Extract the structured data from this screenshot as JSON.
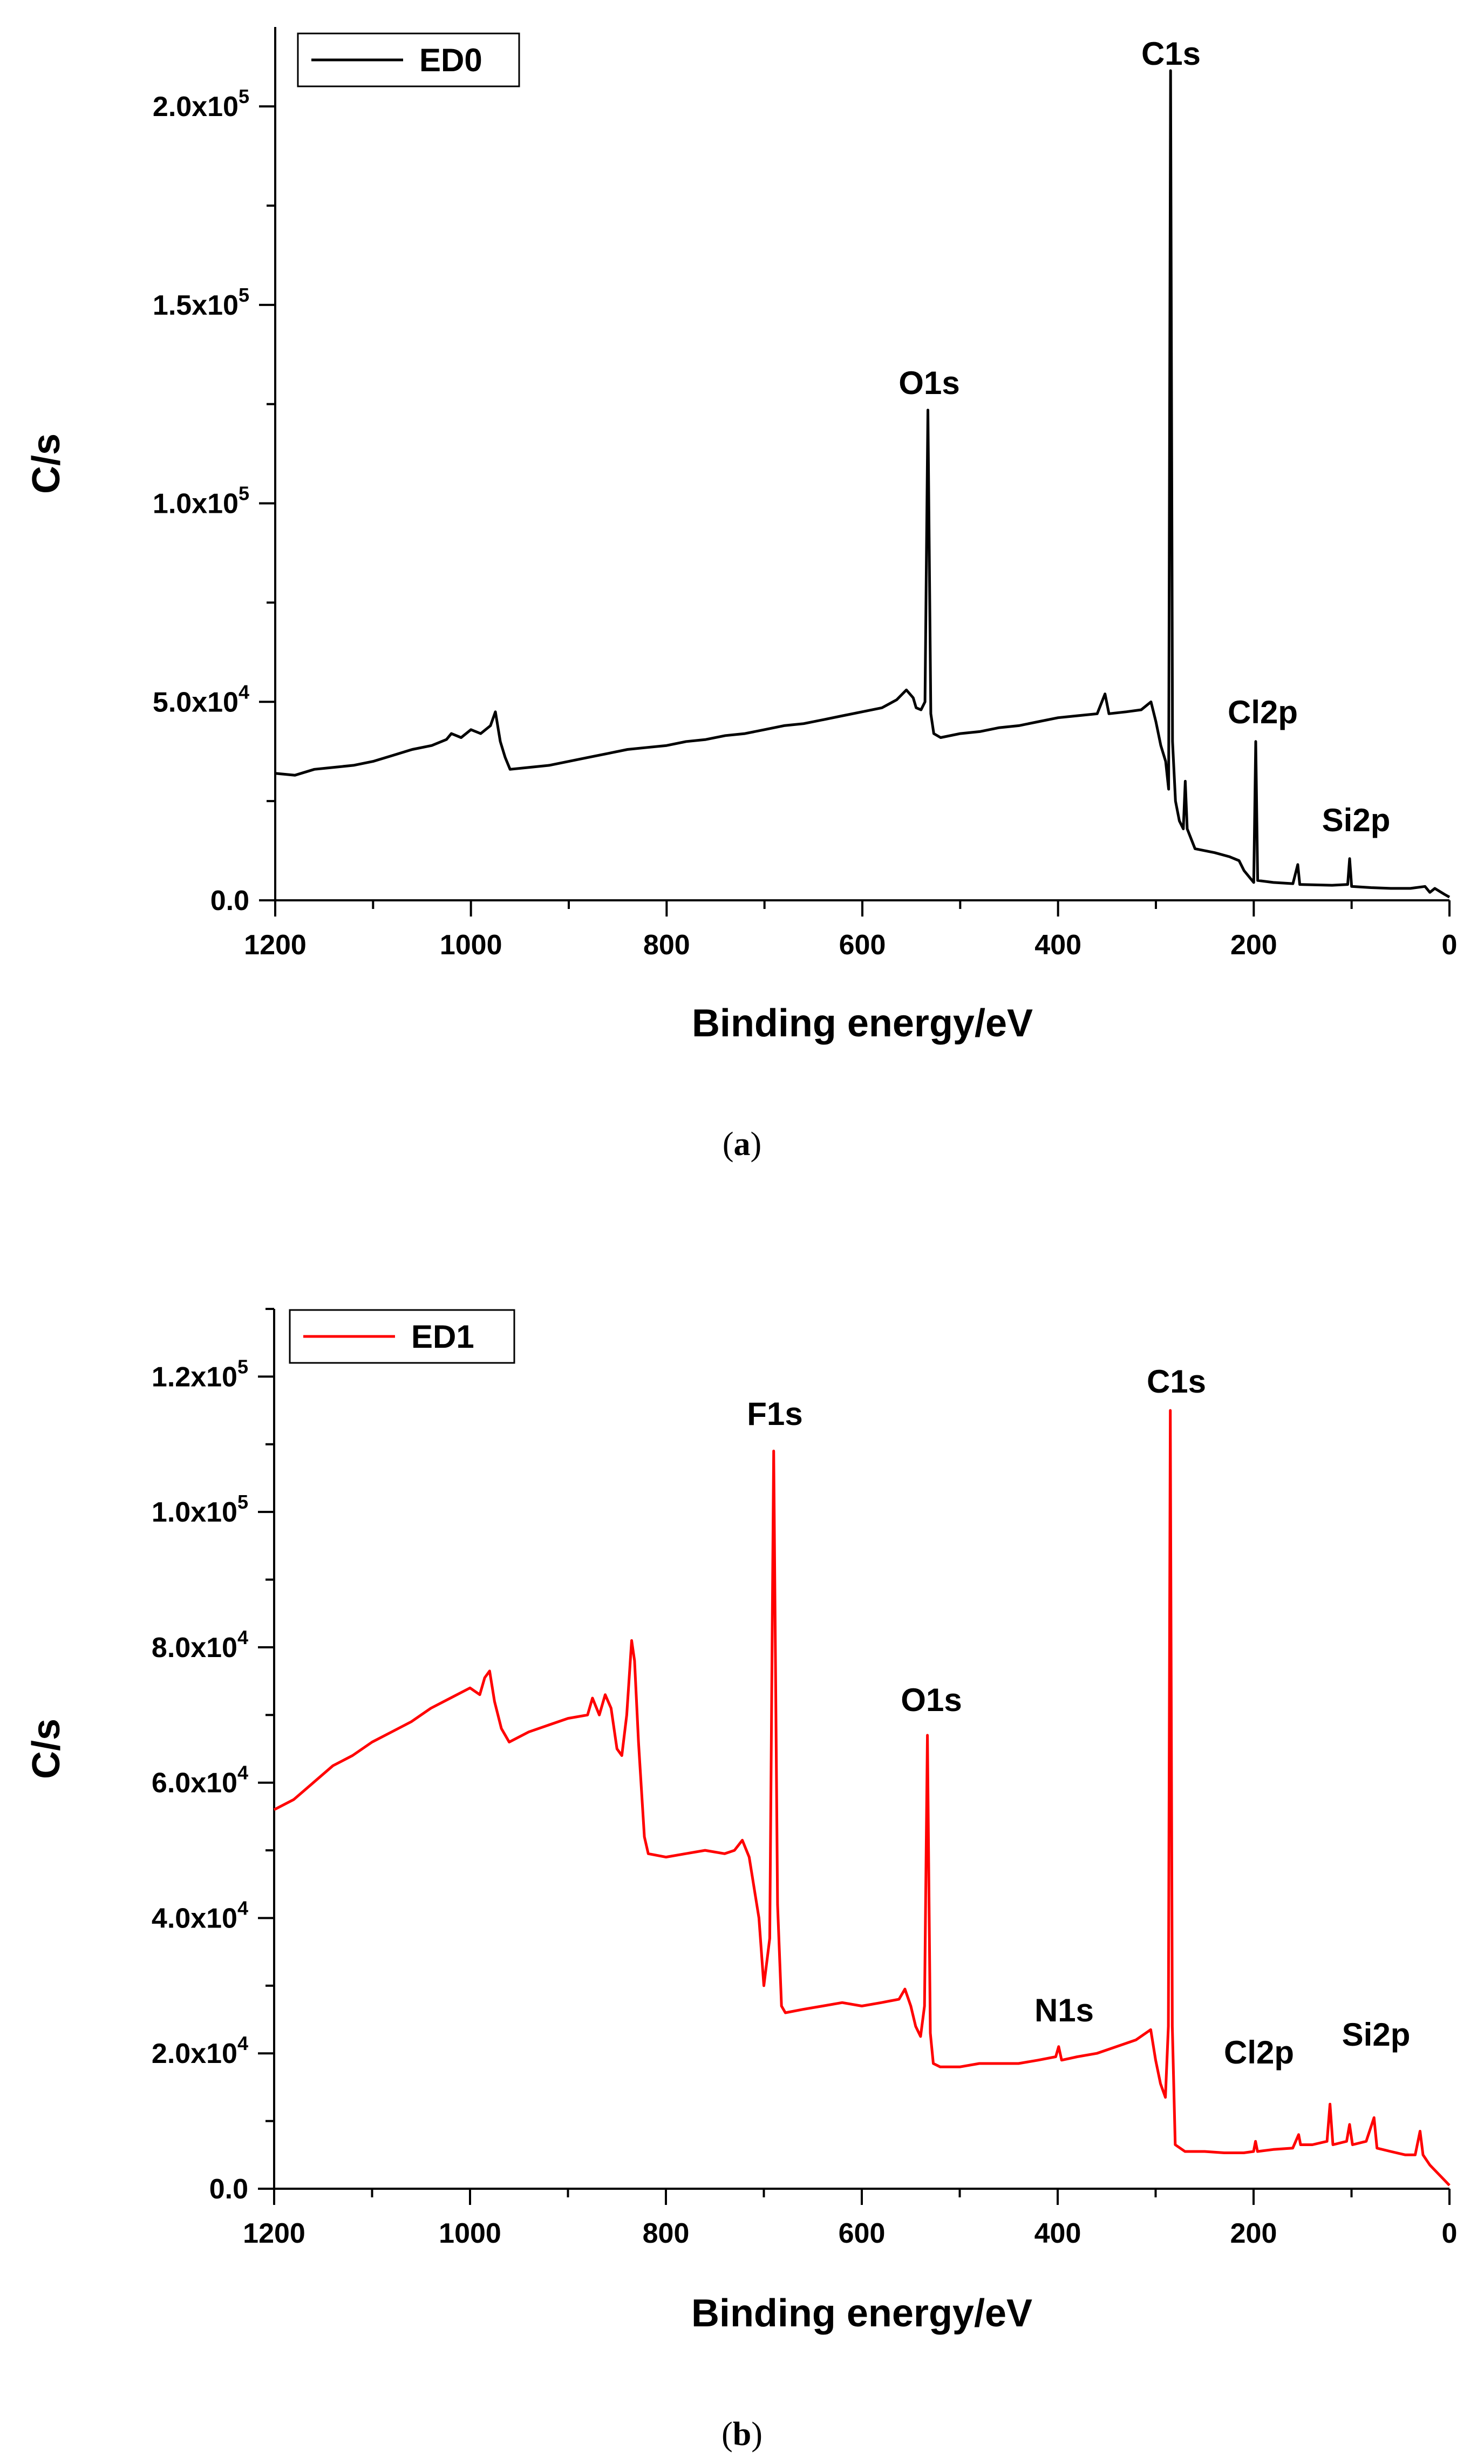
{
  "chart_data": [
    {
      "id": "a",
      "type": "line",
      "caption_letter": "a",
      "xlabel": "Binding energy/eV",
      "ylabel": "C/s",
      "xlim": [
        1200,
        0
      ],
      "ylim": [
        0,
        220000
      ],
      "x_ticks": [
        1200,
        1000,
        800,
        600,
        400,
        200,
        0
      ],
      "x_tick_labels": [
        "1200",
        "1000",
        "800",
        "600",
        "400",
        "200",
        "0"
      ],
      "y_ticks": [
        0,
        50000,
        100000,
        150000,
        200000
      ],
      "y_tick_labels": [
        {
          "mant": "0.0",
          "exp": ""
        },
        {
          "mant": "5.0x10",
          "exp": "4"
        },
        {
          "mant": "1.0x10",
          "exp": "5"
        },
        {
          "mant": "1.5x10",
          "exp": "5"
        },
        {
          "mant": "2.0x10",
          "exp": "5"
        }
      ],
      "legend": {
        "label": "ED0",
        "position": "top-left"
      },
      "series": [
        {
          "name": "ED0",
          "color": "#000000",
          "points": [
            [
              1200,
              32000
            ],
            [
              1180,
              31500
            ],
            [
              1160,
              33000
            ],
            [
              1140,
              33500
            ],
            [
              1120,
              34000
            ],
            [
              1100,
              35000
            ],
            [
              1080,
              36500
            ],
            [
              1060,
              38000
            ],
            [
              1040,
              39000
            ],
            [
              1025,
              40500
            ],
            [
              1020,
              42000
            ],
            [
              1010,
              41000
            ],
            [
              1000,
              43000
            ],
            [
              990,
              42000
            ],
            [
              980,
              44000
            ],
            [
              975,
              47500
            ],
            [
              970,
              40000
            ],
            [
              965,
              36000
            ],
            [
              960,
              33000
            ],
            [
              940,
              33500
            ],
            [
              920,
              34000
            ],
            [
              900,
              35000
            ],
            [
              880,
              36000
            ],
            [
              860,
              37000
            ],
            [
              840,
              38000
            ],
            [
              820,
              38500
            ],
            [
              800,
              39000
            ],
            [
              780,
              40000
            ],
            [
              760,
              40500
            ],
            [
              740,
              41500
            ],
            [
              720,
              42000
            ],
            [
              700,
              43000
            ],
            [
              680,
              44000
            ],
            [
              660,
              44500
            ],
            [
              640,
              45500
            ],
            [
              620,
              46500
            ],
            [
              600,
              47500
            ],
            [
              580,
              48500
            ],
            [
              565,
              50500
            ],
            [
              555,
              53000
            ],
            [
              548,
              51000
            ],
            [
              545,
              48500
            ],
            [
              540,
              48000
            ],
            [
              536,
              50000
            ],
            [
              533,
              123500
            ],
            [
              530,
              47000
            ],
            [
              527,
              42000
            ],
            [
              520,
              41000
            ],
            [
              500,
              42000
            ],
            [
              480,
              42500
            ],
            [
              460,
              43500
            ],
            [
              440,
              44000
            ],
            [
              420,
              45000
            ],
            [
              400,
              46000
            ],
            [
              380,
              46500
            ],
            [
              360,
              47000
            ],
            [
              352,
              52000
            ],
            [
              348,
              47000
            ],
            [
              330,
              47500
            ],
            [
              315,
              48000
            ],
            [
              305,
              50000
            ],
            [
              300,
              45000
            ],
            [
              295,
              39000
            ],
            [
              290,
              35000
            ],
            [
              287,
              28000
            ],
            [
              285,
              209000
            ],
            [
              283,
              40000
            ],
            [
              280,
              25000
            ],
            [
              276,
              20000
            ],
            [
              272,
              18000
            ],
            [
              270,
              30000
            ],
            [
              268,
              18000
            ],
            [
              260,
              13000
            ],
            [
              240,
              12000
            ],
            [
              225,
              11000
            ],
            [
              215,
              10000
            ],
            [
              210,
              7500
            ],
            [
              205,
              6000
            ],
            [
              200,
              4500
            ],
            [
              198,
              40000
            ],
            [
              196,
              5000
            ],
            [
              180,
              4500
            ],
            [
              160,
              4200
            ],
            [
              155,
              9000
            ],
            [
              153,
              4000
            ],
            [
              120,
              3800
            ],
            [
              104,
              4000
            ],
            [
              102,
              10500
            ],
            [
              100,
              3500
            ],
            [
              80,
              3200
            ],
            [
              60,
              3000
            ],
            [
              40,
              3000
            ],
            [
              25,
              3500
            ],
            [
              20,
              2000
            ],
            [
              15,
              3000
            ],
            [
              5,
              1500
            ],
            [
              0,
              800
            ]
          ]
        }
      ],
      "annotations": [
        {
          "text": "C1s",
          "x": 285,
          "y": 209000
        },
        {
          "text": "O1s",
          "x": 533,
          "y": 123500
        },
        {
          "text": "Cl2p",
          "x": 198,
          "y": 40000
        },
        {
          "text": "Si2p",
          "x": 102,
          "y": 10500
        }
      ]
    },
    {
      "id": "b",
      "type": "line",
      "caption_letter": "b",
      "xlabel": "Binding energy/eV",
      "ylabel": "C/s",
      "xlim": [
        1200,
        0
      ],
      "ylim": [
        0,
        130000
      ],
      "x_ticks": [
        1200,
        1000,
        800,
        600,
        400,
        200,
        0
      ],
      "x_tick_labels": [
        "1200",
        "1000",
        "800",
        "600",
        "400",
        "200",
        "0"
      ],
      "y_ticks": [
        0,
        20000,
        40000,
        60000,
        80000,
        100000,
        120000
      ],
      "y_tick_labels": [
        {
          "mant": "0.0",
          "exp": ""
        },
        {
          "mant": "2.0x10",
          "exp": "4"
        },
        {
          "mant": "4.0x10",
          "exp": "4"
        },
        {
          "mant": "6.0x10",
          "exp": "4"
        },
        {
          "mant": "8.0x10",
          "exp": "4"
        },
        {
          "mant": "1.0x10",
          "exp": "5"
        },
        {
          "mant": "1.2x10",
          "exp": "5"
        }
      ],
      "legend": {
        "label": "ED1",
        "position": "top-left"
      },
      "series": [
        {
          "name": "ED1",
          "color": "#ff0000",
          "points": [
            [
              1200,
              56000
            ],
            [
              1180,
              57500
            ],
            [
              1160,
              60000
            ],
            [
              1140,
              62500
            ],
            [
              1120,
              64000
            ],
            [
              1100,
              66000
            ],
            [
              1080,
              67500
            ],
            [
              1060,
              69000
            ],
            [
              1040,
              71000
            ],
            [
              1020,
              72500
            ],
            [
              1000,
              74000
            ],
            [
              990,
              73000
            ],
            [
              985,
              75500
            ],
            [
              980,
              76500
            ],
            [
              975,
              72000
            ],
            [
              968,
              68000
            ],
            [
              960,
              66000
            ],
            [
              940,
              67500
            ],
            [
              920,
              68500
            ],
            [
              900,
              69500
            ],
            [
              880,
              70000
            ],
            [
              875,
              72500
            ],
            [
              868,
              70000
            ],
            [
              862,
              73000
            ],
            [
              856,
              71000
            ],
            [
              850,
              65000
            ],
            [
              845,
              64000
            ],
            [
              840,
              70000
            ],
            [
              835,
              81000
            ],
            [
              832,
              78000
            ],
            [
              828,
              66000
            ],
            [
              822,
              52000
            ],
            [
              818,
              49500
            ],
            [
              800,
              49000
            ],
            [
              780,
              49500
            ],
            [
              760,
              50000
            ],
            [
              740,
              49500
            ],
            [
              730,
              50000
            ],
            [
              722,
              51500
            ],
            [
              715,
              49000
            ],
            [
              705,
              40000
            ],
            [
              700,
              30000
            ],
            [
              694,
              37000
            ],
            [
              690,
              109000
            ],
            [
              686,
              42000
            ],
            [
              682,
              27000
            ],
            [
              678,
              26000
            ],
            [
              660,
              26500
            ],
            [
              640,
              27000
            ],
            [
              620,
              27500
            ],
            [
              600,
              27000
            ],
            [
              580,
              27500
            ],
            [
              562,
              28000
            ],
            [
              556,
              29500
            ],
            [
              550,
              27000
            ],
            [
              545,
              24000
            ],
            [
              540,
              22500
            ],
            [
              536,
              27000
            ],
            [
              533,
              67000
            ],
            [
              530,
              23000
            ],
            [
              527,
              18500
            ],
            [
              520,
              18000
            ],
            [
              500,
              18000
            ],
            [
              480,
              18500
            ],
            [
              460,
              18500
            ],
            [
              440,
              18500
            ],
            [
              420,
              19000
            ],
            [
              402,
              19500
            ],
            [
              399,
              21000
            ],
            [
              396,
              19000
            ],
            [
              380,
              19500
            ],
            [
              360,
              20000
            ],
            [
              340,
              21000
            ],
            [
              320,
              22000
            ],
            [
              310,
              23000
            ],
            [
              305,
              23500
            ],
            [
              300,
              19000
            ],
            [
              295,
              15500
            ],
            [
              290,
              13500
            ],
            [
              287,
              24000
            ],
            [
              285,
              115000
            ],
            [
              283,
              24000
            ],
            [
              280,
              6500
            ],
            [
              270,
              5500
            ],
            [
              250,
              5500
            ],
            [
              230,
              5300
            ],
            [
              210,
              5300
            ],
            [
              200,
              5500
            ],
            [
              198,
              7000
            ],
            [
              196,
              5500
            ],
            [
              180,
              5800
            ],
            [
              160,
              6000
            ],
            [
              154,
              8000
            ],
            [
              152,
              6500
            ],
            [
              140,
              6500
            ],
            [
              125,
              7000
            ],
            [
              122,
              12500
            ],
            [
              119,
              6500
            ],
            [
              105,
              7000
            ],
            [
              102,
              9500
            ],
            [
              99,
              6500
            ],
            [
              85,
              7000
            ],
            [
              77,
              10500
            ],
            [
              74,
              6000
            ],
            [
              60,
              5500
            ],
            [
              45,
              5000
            ],
            [
              35,
              5000
            ],
            [
              30,
              8500
            ],
            [
              27,
              5000
            ],
            [
              20,
              3500
            ],
            [
              10,
              2000
            ],
            [
              0,
              500
            ]
          ]
        }
      ],
      "annotations": [
        {
          "text": "F1s",
          "x": 690,
          "y": 109000
        },
        {
          "text": "C1s",
          "x": 285,
          "y": 115000
        },
        {
          "text": "O1s",
          "x": 533,
          "y": 67000
        },
        {
          "text": "N1s",
          "x": 399,
          "y": 21000
        },
        {
          "text": "Cl2p",
          "x": 198,
          "y": 7000
        },
        {
          "text": "Si2p",
          "x": 122,
          "y": 12500
        }
      ]
    }
  ]
}
